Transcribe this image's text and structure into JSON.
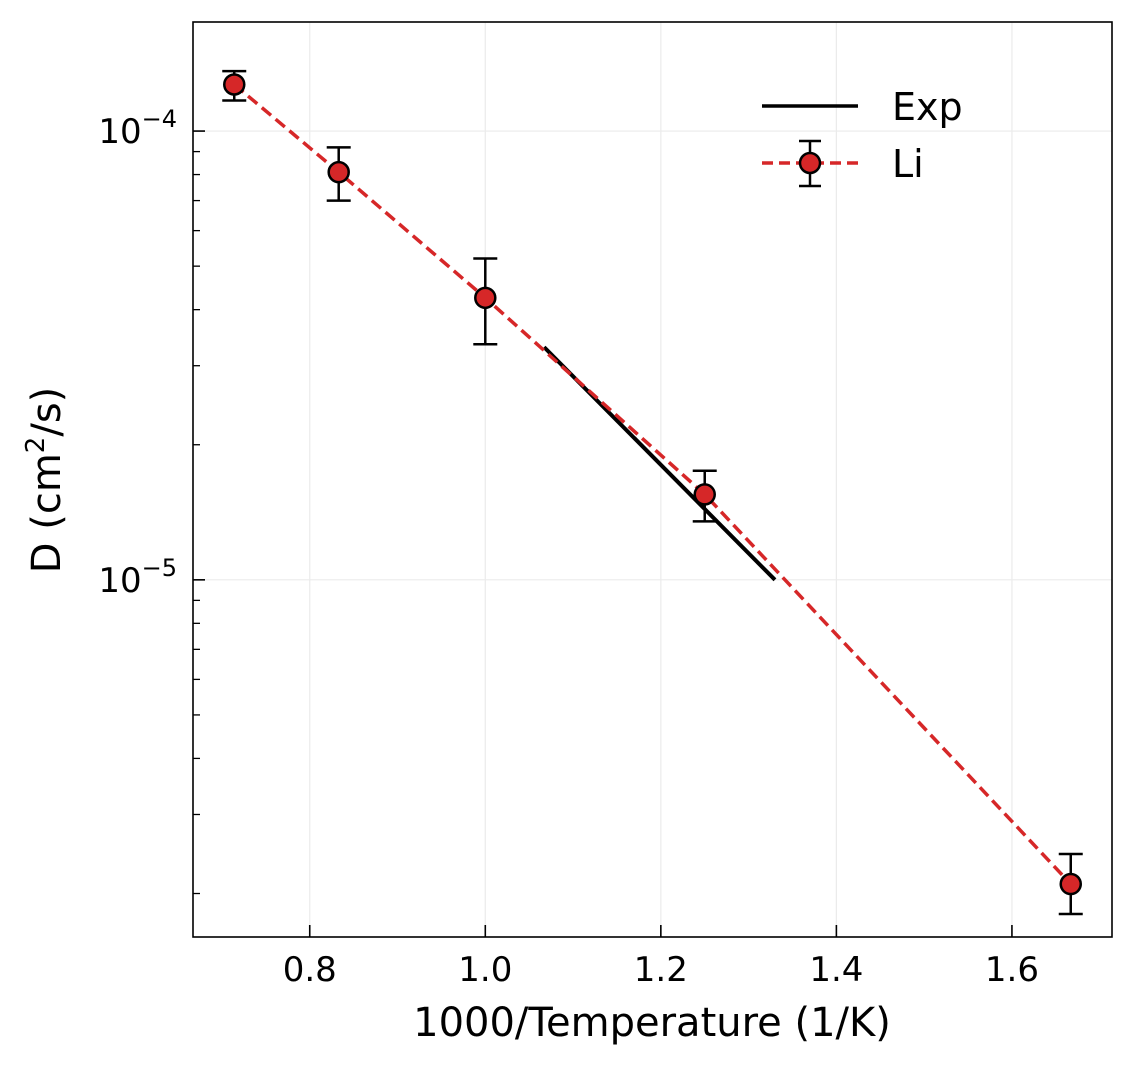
{
  "chart_data": {
    "type": "scatter",
    "xlabel": "1000/Temperature (1/K)",
    "ylabel_prefix": "D (cm",
    "ylabel_sup": "2",
    "ylabel_suffix": "/s)",
    "x_scale": "linear",
    "y_scale": "log",
    "xlim": [
      0.667,
      1.714
    ],
    "ylim": [
      1.6e-06,
      0.000175
    ],
    "x_ticks": [
      0.8,
      1.0,
      1.2,
      1.4,
      1.6
    ],
    "x_tick_labels": [
      "0.8",
      "1.0",
      "1.2",
      "1.4",
      "1.6"
    ],
    "y_major_ticks": [
      {
        "value": 0.0001,
        "base": "10",
        "exp": "−4"
      },
      {
        "value": 1e-05,
        "base": "10",
        "exp": "−5"
      }
    ],
    "grid": true,
    "legend_position": "upper right",
    "legend_frame": false,
    "series": [
      {
        "name": "Exp",
        "style": "solid line",
        "color": "#000000",
        "x": [
          1.067,
          1.33
        ],
        "y": [
          3.3e-05,
          1e-05
        ]
      },
      {
        "name": "Li",
        "style": "dashed line with circle markers and error bars",
        "color": "#d62728",
        "marker_edge_color": "#000000",
        "x": [
          0.714,
          0.833,
          1.0,
          1.25,
          1.667
        ],
        "y": [
          0.000127,
          8.1e-05,
          4.25e-05,
          1.55e-05,
          2.1e-06
        ],
        "y_err_low": [
          0.000117,
          7e-05,
          3.35e-05,
          1.35e-05,
          1.8e-06
        ],
        "y_err_high": [
          0.000136,
          9.2e-05,
          5.2e-05,
          1.75e-05,
          2.45e-06
        ]
      }
    ]
  }
}
